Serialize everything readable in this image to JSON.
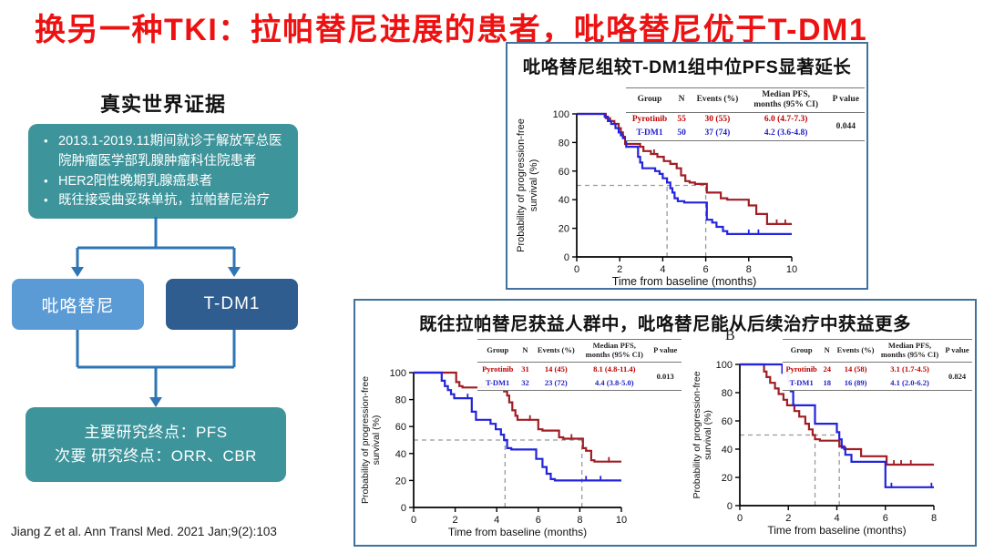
{
  "page_title": "换另一种TKI：拉帕替尼进展的患者，吡咯替尼优于T-DM1",
  "left_flow": {
    "heading": "真实世界证据",
    "criteria": [
      "2013.1-2019.11期间就诊于解放军总医院肿瘤医学部乳腺肿瘤科住院患者",
      "HER2阳性晚期乳腺癌患者",
      "既往接受曲妥珠单抗，拉帕替尼治疗"
    ],
    "arm_pyrotinib": "吡咯替尼",
    "arm_tdm1": "T-DM1",
    "endpoints": [
      "主要研究终点：PFS",
      "次要 研究终点：ORR、CBR"
    ],
    "citation": "Jiang Z et al. Ann Transl Med. 2021 Jan;9(2):103"
  },
  "panels": {
    "top": {
      "title": "吡咯替尼组较T-DM1组中位PFS显著延长",
      "table": {
        "headers": [
          "Group",
          "N",
          "Events (%)",
          "Median PFS,\nmonths (95% CI)",
          "P value"
        ],
        "rows": [
          {
            "group": "Pyrotinib",
            "n": "55",
            "events": "30 (55)",
            "median": "6.0 (4.7-7.3)"
          },
          {
            "group": "T-DM1",
            "n": "50",
            "events": "37 (74)",
            "median": "4.2 (3.6-4.8)"
          }
        ],
        "p_value": "0.044"
      }
    },
    "bottom": {
      "title": "既往拉帕替尼获益人群中，吡咯替尼能从后续治疗中获益更多",
      "panel_b_label": "B",
      "table_a": {
        "headers": [
          "Group",
          "N",
          "Events (%)",
          "Median PFS,\nmonths (95% CI)",
          "P value"
        ],
        "rows": [
          {
            "group": "Pyrotinib",
            "n": "31",
            "events": "14 (45)",
            "median": "8.1 (4.8-11.4)"
          },
          {
            "group": "T-DM1",
            "n": "32",
            "events": "23 (72)",
            "median": "4.4 (3.8-5.0)"
          }
        ],
        "p_value": "0.013"
      },
      "table_b": {
        "headers": [
          "Group",
          "N",
          "Events (%)",
          "Median PFS,\nmonths (95% CI)",
          "P value"
        ],
        "rows": [
          {
            "group": "Pyrotinib",
            "n": "24",
            "events": "14 (58)",
            "median": "3.1 (1.7-4.5)"
          },
          {
            "group": "T-DM1",
            "n": "18",
            "events": "16 (89)",
            "median": "4.1 (2.0-6.2)"
          }
        ],
        "p_value": "0.824"
      }
    }
  },
  "colors": {
    "title_red": "#ee1111",
    "teal_box": "#3e949b",
    "arm_light_blue": "#5b9bd5",
    "arm_dark_blue": "#2f5d8f",
    "connector_blue": "#2e75b6",
    "panel_border": "#41719c",
    "curve_red": "#a01e24",
    "curve_blue": "#2323dc",
    "table_red": "#c00000",
    "table_blue": "#2020c8",
    "dashed_gray": "#999999"
  },
  "chart_data": [
    {
      "id": "km-top",
      "type": "line",
      "subtype": "kaplan-meier",
      "title": "吡咯替尼组较T-DM1组中位PFS显著延长",
      "xlabel": "Time from baseline (months)",
      "ylabel_lines": [
        "Probability of progression-free",
        "survival (%)"
      ],
      "xlim": [
        0,
        10
      ],
      "xticks": [
        0,
        2,
        4,
        6,
        8,
        10
      ],
      "ylim": [
        0,
        100
      ],
      "yticks": [
        0,
        20,
        40,
        60,
        80,
        100
      ],
      "grid": false,
      "median_pct": 50,
      "median_x": [
        4.2,
        6.0
      ],
      "series": [
        {
          "name": "Pyrotinib",
          "color_key": "curve_red",
          "start": 100,
          "drops": [
            [
              1.35,
              97
            ],
            [
              1.55,
              95
            ],
            [
              1.75,
              93
            ],
            [
              1.95,
              90
            ],
            [
              2.05,
              87
            ],
            [
              2.15,
              84
            ],
            [
              2.25,
              79
            ],
            [
              2.95,
              77
            ],
            [
              3.1,
              74
            ],
            [
              3.45,
              72
            ],
            [
              3.75,
              70
            ],
            [
              4.05,
              67
            ],
            [
              4.35,
              65
            ],
            [
              4.65,
              62
            ],
            [
              4.85,
              57
            ],
            [
              5.05,
              53
            ],
            [
              5.25,
              52
            ],
            [
              5.5,
              51
            ],
            [
              6.05,
              45
            ],
            [
              6.7,
              41
            ],
            [
              7.0,
              40
            ],
            [
              8.0,
              36
            ],
            [
              8.35,
              30
            ],
            [
              8.85,
              23
            ],
            [
              10,
              23
            ]
          ],
          "censors": [
            [
              3.6,
              72
            ],
            [
              9.3,
              23
            ],
            [
              9.7,
              23
            ]
          ]
        },
        {
          "name": "T-DM1",
          "color_key": "curve_blue",
          "start": 100,
          "drops": [
            [
              1.3,
              98
            ],
            [
              1.45,
              95
            ],
            [
              1.6,
              93
            ],
            [
              1.8,
              90
            ],
            [
              1.95,
              87
            ],
            [
              2.05,
              85
            ],
            [
              2.15,
              83
            ],
            [
              2.3,
              77
            ],
            [
              2.85,
              70
            ],
            [
              2.95,
              66
            ],
            [
              3.05,
              62
            ],
            [
              3.65,
              60
            ],
            [
              3.85,
              58
            ],
            [
              4.0,
              55
            ],
            [
              4.2,
              52
            ],
            [
              4.35,
              48
            ],
            [
              4.45,
              45
            ],
            [
              4.55,
              41
            ],
            [
              4.7,
              39
            ],
            [
              5.0,
              38
            ],
            [
              6.05,
              26
            ],
            [
              6.3,
              24
            ],
            [
              6.5,
              21
            ],
            [
              6.8,
              18
            ],
            [
              7.0,
              16
            ],
            [
              10,
              16
            ]
          ],
          "censors": [
            [
              8.0,
              16
            ],
            [
              8.45,
              16
            ]
          ]
        }
      ]
    },
    {
      "id": "km-a",
      "type": "line",
      "subtype": "kaplan-meier",
      "title": "",
      "xlabel": "Time from baseline (months)",
      "ylabel_lines": [
        "Probability of progression-free",
        "survival (%)"
      ],
      "xlim": [
        0,
        10
      ],
      "xticks": [
        0,
        2,
        4,
        6,
        8,
        10
      ],
      "ylim": [
        0,
        100
      ],
      "yticks": [
        0,
        20,
        40,
        60,
        80,
        100
      ],
      "grid": false,
      "median_pct": 50,
      "median_x": [
        4.4,
        8.1
      ],
      "series": [
        {
          "name": "Pyrotinib",
          "color_key": "curve_red",
          "start": 100,
          "drops": [
            [
              2.05,
              93
            ],
            [
              2.2,
              90
            ],
            [
              2.35,
              89
            ],
            [
              4.35,
              86
            ],
            [
              4.5,
              83
            ],
            [
              4.6,
              78
            ],
            [
              4.75,
              72
            ],
            [
              4.9,
              68
            ],
            [
              5.0,
              65
            ],
            [
              6.0,
              58
            ],
            [
              6.2,
              57
            ],
            [
              7.0,
              52
            ],
            [
              7.2,
              51
            ],
            [
              8.15,
              44
            ],
            [
              8.3,
              42
            ],
            [
              8.55,
              35
            ],
            [
              8.7,
              34
            ],
            [
              10,
              34
            ]
          ],
          "censors": [
            [
              3.3,
              89
            ],
            [
              5.6,
              65
            ],
            [
              7.6,
              51
            ],
            [
              9.4,
              34
            ]
          ]
        },
        {
          "name": "T-DM1",
          "color_key": "curve_blue",
          "start": 100,
          "drops": [
            [
              1.35,
              94
            ],
            [
              1.5,
              90
            ],
            [
              1.65,
              87
            ],
            [
              1.8,
              84
            ],
            [
              1.95,
              81
            ],
            [
              2.8,
              71
            ],
            [
              3.0,
              65
            ],
            [
              3.7,
              62
            ],
            [
              3.95,
              58
            ],
            [
              4.2,
              54
            ],
            [
              4.35,
              50
            ],
            [
              4.5,
              44
            ],
            [
              4.7,
              43
            ],
            [
              5.9,
              36
            ],
            [
              6.2,
              30
            ],
            [
              6.4,
              25
            ],
            [
              6.6,
              21
            ],
            [
              6.8,
              20
            ],
            [
              10,
              20
            ]
          ],
          "censors": [
            [
              2.6,
              81
            ],
            [
              8.3,
              20
            ],
            [
              9.0,
              20
            ]
          ]
        }
      ]
    },
    {
      "id": "km-b",
      "type": "line",
      "subtype": "kaplan-meier",
      "title": "B",
      "xlabel": "Time from baseline (months)",
      "ylabel_lines": [
        "Probability of progression-free",
        "survival (%)"
      ],
      "xlim": [
        0,
        8
      ],
      "xticks": [
        0,
        2,
        4,
        6,
        8
      ],
      "ylim": [
        0,
        100
      ],
      "yticks": [
        0,
        20,
        40,
        60,
        80,
        100
      ],
      "grid": false,
      "median_pct": 50,
      "median_x": [
        3.1,
        4.1
      ],
      "series": [
        {
          "name": "Pyrotinib",
          "color_key": "curve_red",
          "start": 100,
          "drops": [
            [
              1.0,
              95
            ],
            [
              1.1,
              91
            ],
            [
              1.25,
              87
            ],
            [
              1.45,
              83
            ],
            [
              1.6,
              79
            ],
            [
              1.8,
              75
            ],
            [
              1.95,
              71
            ],
            [
              2.25,
              67
            ],
            [
              2.45,
              63
            ],
            [
              2.7,
              58
            ],
            [
              2.85,
              54
            ],
            [
              3.0,
              50
            ],
            [
              3.1,
              47
            ],
            [
              3.3,
              46
            ],
            [
              4.1,
              42
            ],
            [
              4.3,
              40
            ],
            [
              5.0,
              35
            ],
            [
              6.05,
              29
            ],
            [
              8,
              29
            ]
          ],
          "censors": [
            [
              6.35,
              29
            ],
            [
              6.65,
              29
            ],
            [
              7.05,
              29
            ]
          ]
        },
        {
          "name": "T-DM1",
          "color_key": "curve_blue",
          "start": 100,
          "drops": [
            [
              1.75,
              94
            ],
            [
              2.0,
              88
            ],
            [
              2.1,
              81
            ],
            [
              2.2,
              71
            ],
            [
              3.1,
              58
            ],
            [
              4.0,
              52
            ],
            [
              4.1,
              47
            ],
            [
              4.2,
              41
            ],
            [
              4.35,
              36
            ],
            [
              4.6,
              31
            ],
            [
              6.0,
              13
            ],
            [
              8,
              13
            ]
          ],
          "censors": [
            [
              6.25,
              13
            ],
            [
              7.9,
              13
            ]
          ]
        }
      ]
    }
  ]
}
